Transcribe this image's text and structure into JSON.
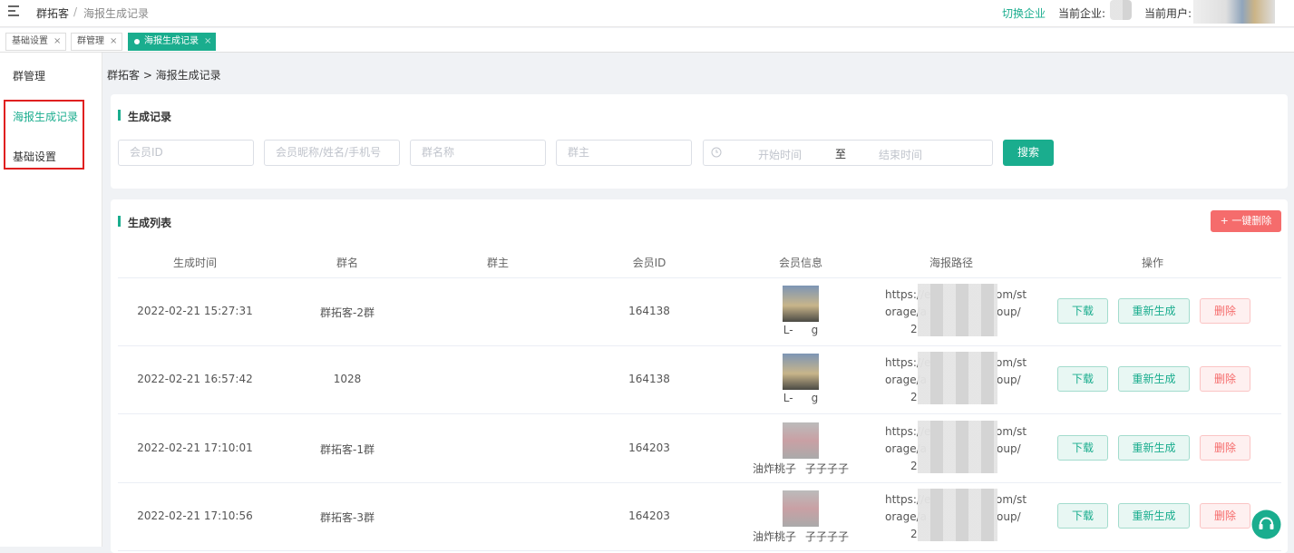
{
  "header": {
    "app": "群拓客",
    "separator": "/",
    "page": "海报生成记录",
    "switch": "切换企业",
    "company_label": "当前企业:",
    "user_label": "当前用户:"
  },
  "tabs": {
    "items": [
      "基础设置",
      "群管理",
      "海报生成记录"
    ],
    "close": "×"
  },
  "sidebar": [
    "群管理",
    "海报生成记录",
    "基础设置"
  ],
  "breadcrumb": "群拓客 > 海报生成记录",
  "filter": {
    "title": "生成记录",
    "placeholders": [
      "会员ID",
      "会员昵称/姓名/手机号",
      "群名称",
      "群主"
    ],
    "date_start": "开始时间",
    "date_sep": "至",
    "date_end": "结束时间",
    "search": "搜索"
  },
  "list": {
    "title": "生成列表",
    "bulk_delete": "+ 一键删除",
    "columns": [
      "生成时间",
      "群名",
      "群主",
      "会员ID",
      "会员信息",
      "海报路径",
      "操作"
    ],
    "actions": [
      "下载",
      "重新生成",
      "删除"
    ],
    "rows": [
      {
        "time": "2022-02-21 15:27:31",
        "group": "群拓客-2群",
        "member_id": "164138",
        "name_parts": [
          "L-",
          "g"
        ],
        "path_lines": [
          [
            "https://e",
            "om/st"
          ],
          [
            "orage/a",
            "oup/"
          ],
          [
            "2"
          ]
        ]
      },
      {
        "time": "2022-02-21 16:57:42",
        "group": "1028",
        "member_id": "164138",
        "name_parts": [
          "L-",
          "g"
        ],
        "path_lines": [
          [
            "https://e",
            "om/st"
          ],
          [
            "orage/a",
            "oup/"
          ],
          [
            "2"
          ]
        ]
      },
      {
        "time": "2022-02-21 17:10:01",
        "group": "群拓客-1群",
        "member_id": "164203",
        "name_parts": [
          "油炸桃子",
          "子子子子"
        ],
        "path_lines": [
          [
            "https://e",
            "om/st"
          ],
          [
            "orage/a",
            "oup/"
          ],
          [
            "2"
          ]
        ]
      },
      {
        "time": "2022-02-21 17:10:56",
        "group": "群拓客-3群",
        "member_id": "164203",
        "name_parts": [
          "油炸桃子",
          "子子子子"
        ],
        "path_lines": [
          [
            "https://e",
            "om/st"
          ],
          [
            "orage/a",
            "oup/"
          ],
          [
            "2"
          ]
        ]
      }
    ]
  }
}
